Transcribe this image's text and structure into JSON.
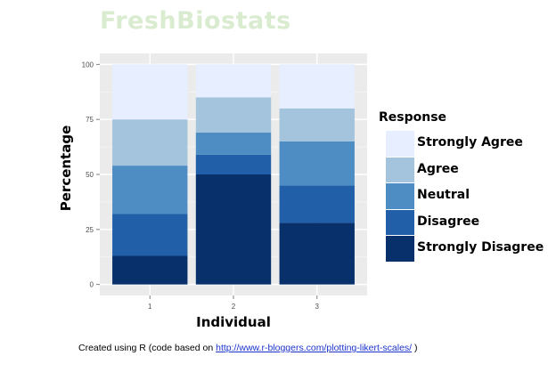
{
  "watermark": "FreshBiostats",
  "chart_data": {
    "type": "bar",
    "stacked": true,
    "categories": [
      "1",
      "2",
      "3"
    ],
    "xlabel": "Individual",
    "ylabel": "Percentage",
    "ylim": [
      0,
      100
    ],
    "yticks": [
      0,
      25,
      50,
      75,
      100
    ],
    "grid": true,
    "legend_title": "Response",
    "legend_position": "right",
    "series": [
      {
        "name": "Strongly Disagree",
        "color": "#08306b",
        "values": [
          13,
          50,
          28
        ]
      },
      {
        "name": "Disagree",
        "color": "#2160a8",
        "values": [
          19,
          9,
          17
        ]
      },
      {
        "name": "Neutral",
        "color": "#4e8dc4",
        "values": [
          22,
          10,
          20
        ]
      },
      {
        "name": "Agree",
        "color": "#a3c4dc",
        "values": [
          21,
          16,
          15
        ]
      },
      {
        "name": "Strongly Agree",
        "color": "#e6eeff",
        "values": [
          25,
          15,
          20
        ]
      }
    ]
  },
  "caption": {
    "prefix": "Created using R (code based on ",
    "link": "http://www.r-bloggers.com/plotting-likert-scales/",
    "suffix": " )"
  }
}
